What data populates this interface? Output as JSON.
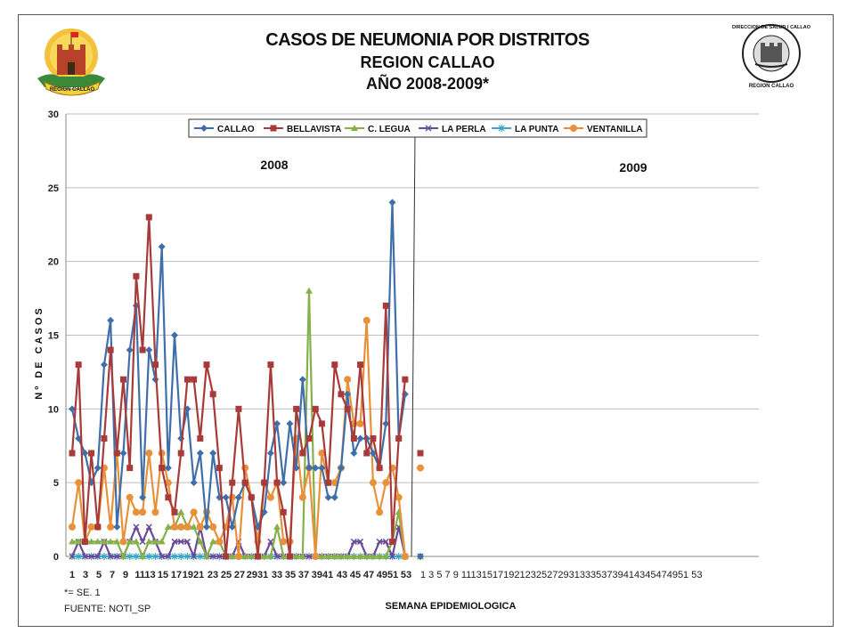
{
  "header": {
    "title_line1": "CASOS DE NEUMONIA POR DISTRITOS",
    "title_line2": "REGION CALLAO",
    "title_line3": "AÑO 2008-2009*"
  },
  "logos": {
    "left_text": "REGION CALLAO",
    "right_text": "DIRECCION DE SALUD I CALLAO",
    "right_bottom_text": "REGION CALLAO"
  },
  "footer": {
    "note1": "*= SE. 1",
    "note2": "FUENTE: NOTI_SP"
  },
  "colors": {
    "CALLAO": "#3f6faa",
    "BELLAVISTA": "#a83a3a",
    "C. LEGUA": "#86b04a",
    "LA PERLA": "#6b4a9a",
    "LA PUNTA": "#3aa6c4",
    "VENTANILLA": "#e8913a"
  },
  "chart_data": {
    "type": "line",
    "title": "",
    "xlabel": "SEMANA EPIDEMIOLOGICA",
    "ylabel": "Nº DE CASOS",
    "ylim": [
      0,
      30
    ],
    "yticks": [
      0,
      5,
      10,
      15,
      20,
      25,
      30
    ],
    "grid": true,
    "legend_position": "top",
    "year_labels": [
      "2008",
      "2009"
    ],
    "x_tick_labels_2008": [
      "1",
      "3",
      "5",
      "7",
      "9",
      "11",
      "13",
      "15",
      "17",
      "19",
      "21",
      "23",
      "25",
      "27",
      "29",
      "31",
      "33",
      "35",
      "37",
      "39",
      "41",
      "43",
      "45",
      "47",
      "49",
      "51",
      "53"
    ],
    "x_tick_labels_2009": [
      "1",
      "3",
      "5",
      "7",
      "9",
      "11",
      "13",
      "15",
      "17",
      "19",
      "21",
      "23",
      "25",
      "27",
      "29",
      "31",
      "33",
      "35",
      "37",
      "39",
      "41",
      "43",
      "45",
      "47",
      "49",
      "51",
      "53"
    ],
    "x_tick_display_2008": [
      "1",
      "3",
      "5",
      "7",
      "9",
      "1113",
      "15",
      "17",
      "1921",
      "23",
      "25",
      "27",
      "2931",
      "33",
      "35",
      "37",
      "3941",
      "43",
      "45",
      "47",
      "4951",
      "53"
    ],
    "x_tick_display_2009": "1 3 5 7 9 111315171921232527293133353739414345474951 53",
    "series": [
      {
        "name": "CALLAO",
        "values": [
          10,
          8,
          7,
          5,
          6,
          13,
          16,
          2,
          7,
          14,
          17,
          4,
          14,
          12,
          21,
          6,
          15,
          8,
          10,
          5,
          7,
          2,
          7,
          4,
          4,
          2,
          4,
          5,
          4,
          2,
          3,
          7,
          9,
          5,
          9,
          6,
          12,
          6,
          6,
          6,
          4,
          4,
          6,
          11,
          7,
          8,
          8,
          7,
          6,
          9,
          24,
          8,
          11
        ],
        "value_2009_wk1": 0
      },
      {
        "name": "BELLAVISTA",
        "values": [
          7,
          13,
          1,
          7,
          2,
          8,
          14,
          7,
          12,
          6,
          19,
          14,
          23,
          13,
          6,
          4,
          3,
          7,
          12,
          12,
          8,
          13,
          11,
          6,
          0,
          5,
          10,
          5,
          4,
          0,
          5,
          13,
          5,
          3,
          0,
          10,
          7,
          8,
          10,
          9,
          5,
          13,
          11,
          10,
          8,
          13,
          7,
          8,
          6,
          17,
          1,
          8,
          12
        ],
        "value_2009_wk1": 7
      },
      {
        "name": "C. LEGUA",
        "values": [
          1,
          1,
          1,
          1,
          1,
          1,
          1,
          1,
          0,
          1,
          1,
          0,
          1,
          1,
          1,
          2,
          2,
          3,
          2,
          2,
          1,
          0,
          1,
          1,
          0,
          0,
          0,
          0,
          0,
          0,
          0,
          0,
          2,
          0,
          0,
          0,
          0,
          18,
          0,
          0,
          0,
          0,
          0,
          0,
          0,
          0,
          0,
          0,
          0,
          0,
          1,
          3,
          0
        ],
        "value_2009_wk1": 0
      },
      {
        "name": "LA PERLA",
        "values": [
          0,
          1,
          0,
          0,
          0,
          1,
          0,
          0,
          0,
          1,
          2,
          1,
          2,
          1,
          0,
          0,
          1,
          1,
          1,
          0,
          2,
          0,
          0,
          0,
          0,
          0,
          1,
          0,
          0,
          0,
          0,
          1,
          0,
          0,
          0,
          0,
          0,
          0,
          0,
          0,
          0,
          0,
          0,
          0,
          1,
          1,
          0,
          0,
          1,
          1,
          0,
          2,
          0
        ],
        "value_2009_wk1": 0
      },
      {
        "name": "LA PUNTA",
        "values": [
          0,
          0,
          0,
          0,
          0,
          0,
          0,
          0,
          0,
          0,
          0,
          0,
          0,
          0,
          0,
          0,
          0,
          0,
          0,
          0,
          0,
          0,
          0,
          0,
          0,
          0,
          0,
          0,
          0,
          0,
          0,
          0,
          0,
          0,
          0,
          0,
          0,
          0,
          0,
          0,
          0,
          0,
          0,
          0,
          0,
          0,
          0,
          0,
          0,
          0,
          0,
          0,
          0
        ],
        "value_2009_wk1": 0
      },
      {
        "name": "VENTANILLA",
        "values": [
          2,
          5,
          1,
          2,
          2,
          6,
          2,
          7,
          1,
          4,
          3,
          3,
          7,
          3,
          7,
          5,
          2,
          2,
          2,
          3,
          2,
          3,
          2,
          1,
          2,
          4,
          0,
          6,
          4,
          1,
          5,
          4,
          5,
          1,
          1,
          8,
          4,
          6,
          0,
          7,
          5,
          5,
          6,
          12,
          9,
          9,
          16,
          5,
          3,
          5,
          6,
          4,
          0
        ],
        "value_2009_wk1": 6
      }
    ]
  }
}
